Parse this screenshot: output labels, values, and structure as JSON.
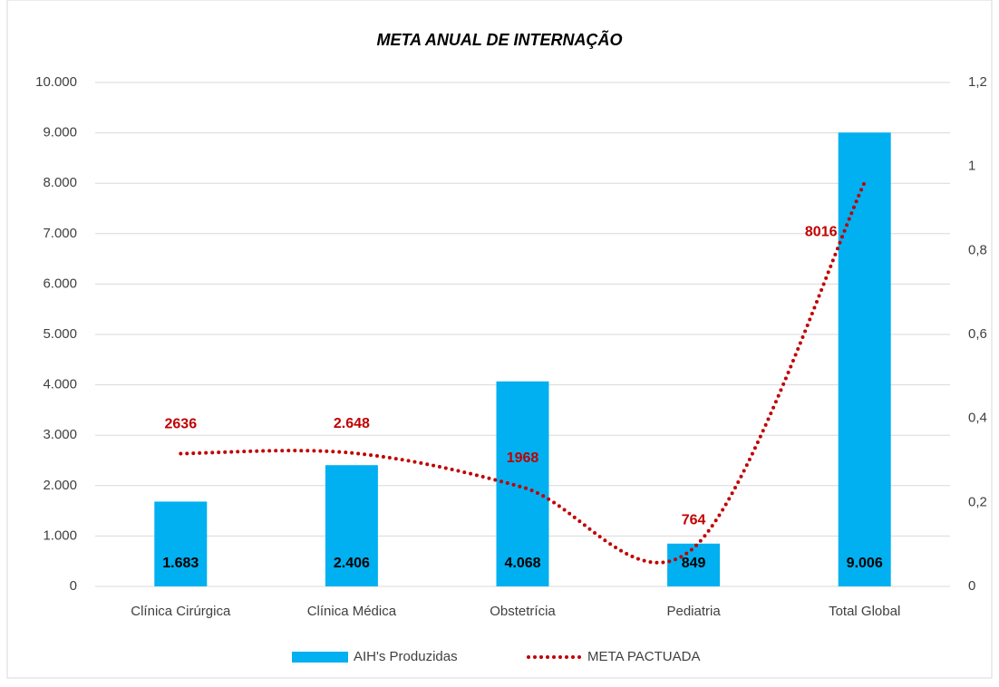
{
  "chart_data": {
    "type": "bar_line",
    "title": "META ANUAL DE INTERNAÇÃO",
    "categories": [
      "Clínica Cirúrgica",
      "Clínica Médica",
      "Obstetrícia",
      "Pediatria",
      "Total Global"
    ],
    "series": [
      {
        "name": "AIH's Produzidas",
        "type": "bar",
        "color": "#00b0f0",
        "values": [
          1683,
          2406,
          4068,
          849,
          9006
        ],
        "value_labels": [
          "1.683",
          "2.406",
          "4.068",
          "849",
          "9.006"
        ]
      },
      {
        "name": "META PACTUADA",
        "type": "line",
        "color": "#c00000",
        "values": [
          2636,
          2648,
          1968,
          764,
          8016
        ],
        "value_labels": [
          "2636",
          "2.648",
          "1968",
          "764",
          "8016"
        ]
      }
    ],
    "ylim": [
      0,
      10000
    ],
    "yticks": [
      0,
      {
        "value": 1000,
        "label": "1.000"
      },
      {
        "value": 2000,
        "label": "2.000"
      },
      {
        "value": 3000,
        "label": "3.000"
      },
      {
        "value": 4000,
        "label": "4.000"
      },
      {
        "value": 5000,
        "label": "5.000"
      },
      {
        "value": 6000,
        "label": "6.000"
      },
      {
        "value": 7000,
        "label": "7.000"
      },
      {
        "value": 8000,
        "label": "8.000"
      },
      {
        "value": 9000,
        "label": "9.000"
      },
      {
        "value": 10000,
        "label": "10.000"
      }
    ],
    "y2lim": [
      0,
      1.2
    ],
    "y2ticks": [
      0,
      {
        "value": 0.2,
        "label": "0,2"
      },
      {
        "value": 0.4,
        "label": "0,4"
      },
      {
        "value": 0.6,
        "label": "0,6"
      },
      {
        "value": 0.8,
        "label": "0,8"
      },
      1,
      {
        "value": 1.2,
        "label": "1,2"
      }
    ],
    "grid": true,
    "legend": "bottom"
  }
}
